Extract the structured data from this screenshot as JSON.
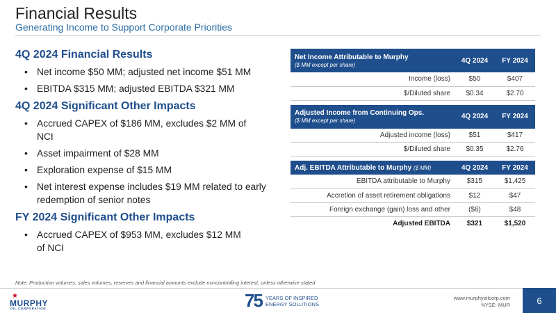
{
  "header": {
    "title": "Financial Results",
    "subtitle": "Generating Income to Support Corporate Priorities"
  },
  "sections": [
    {
      "heading": "4Q 2024 Financial Results",
      "bullets": [
        "Net income $50 MM; adjusted net income $51 MM",
        "EBITDA $315 MM; adjusted EBITDA $321 MM"
      ]
    },
    {
      "heading": "4Q 2024 Significant Other Impacts",
      "bullets": [
        "Accrued CAPEX of $186 MM, excludes $2 MM of NCI",
        "Asset impairment of $28 MM",
        "Exploration expense of $15 MM",
        "Net interest expense includes $19 MM related to early redemption of senior notes"
      ]
    },
    {
      "heading": "FY 2024 Significant Other Impacts",
      "bullets": [
        "Accrued CAPEX of $953 MM, excludes $12 MM of NCI"
      ]
    }
  ],
  "tables": {
    "net_income": {
      "title": "Net Income Attributable to Murphy",
      "subtitle": "($ MM except per share)",
      "col_4q": "4Q 2024",
      "col_fy": "FY 2024",
      "rows": [
        {
          "label": "Income (loss)",
          "q4": "$50",
          "fy": "$407"
        },
        {
          "label": "$/Diluted share",
          "q4": "$0.34",
          "fy": "$2.70"
        }
      ]
    },
    "adjusted_income": {
      "title": "Adjusted Income from Continuing Ops.",
      "subtitle": "($ MM except per share)",
      "col_4q": "4Q 2024",
      "col_fy": "FY 2024",
      "rows": [
        {
          "label": "Adjusted income (loss)",
          "q4": "$51",
          "fy": "$417"
        },
        {
          "label": "$/Diluted share",
          "q4": "$0.35",
          "fy": "$2.76"
        }
      ]
    },
    "ebitda": {
      "title": "Adj. EBITDA Attributable to Murphy",
      "subtitle": "($ MM)",
      "col_4q": "4Q 2024",
      "col_fy": "FY 2024",
      "rows": [
        {
          "label": "EBITDA attributable to Murphy",
          "q4": "$315",
          "fy": "$1,425"
        },
        {
          "label": "Accretion of asset retirement obligations",
          "q4": "$12",
          "fy": "$47"
        },
        {
          "label": "Foreign exchange (gain) loss and other",
          "q4": "($6)",
          "fy": "$48"
        }
      ],
      "total": {
        "label": "Adjusted EBITDA",
        "q4": "$321",
        "fy": "$1,520"
      }
    }
  },
  "note": "Note: Production volumes, sales volumes, reserves and financial amounts exclude noncontrolling interest, unless otherwise stated",
  "footer": {
    "logo_word": "MURPHY",
    "logo_sub": "OIL CORPORATION",
    "anniv_num": "75",
    "anniv_line1": "YEARS OF INSPIRED",
    "anniv_line2": "ENERGY SOLUTIONS",
    "url": "www.murphyoilcorp.com",
    "ticker": "NYSE: MUR",
    "page": "6"
  },
  "colors": {
    "brand_blue": "#1f4e8c",
    "subtitle_blue": "#2e6da4",
    "logo_red": "#c8102e"
  }
}
